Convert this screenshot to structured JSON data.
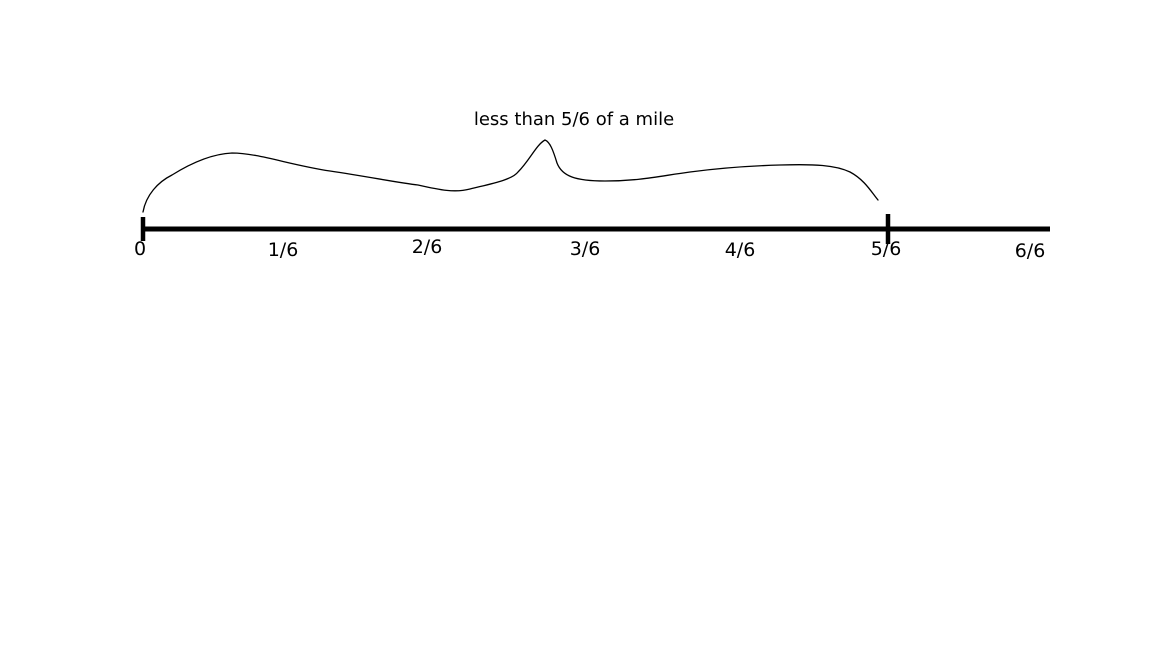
{
  "background": "#ffffff",
  "ink_color": "#000000",
  "brace_label": "less than 5/6 of a mile",
  "number_line": {
    "labels": [
      "0",
      "1/6",
      "2/6",
      "3/6",
      "4/6",
      "5/6",
      "6/6"
    ],
    "marked": [
      "0",
      "5/6"
    ]
  }
}
